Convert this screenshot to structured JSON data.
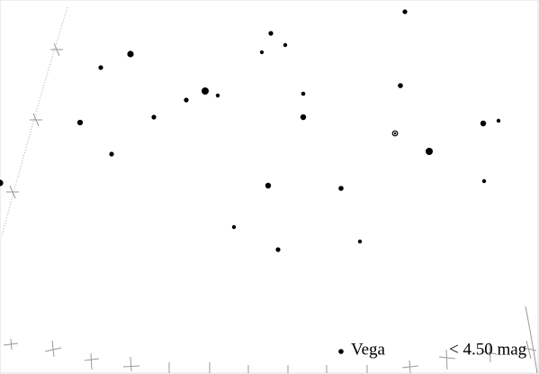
{
  "legend": {
    "star": "Vega",
    "limit": "< 4.50 mag"
  }
}
